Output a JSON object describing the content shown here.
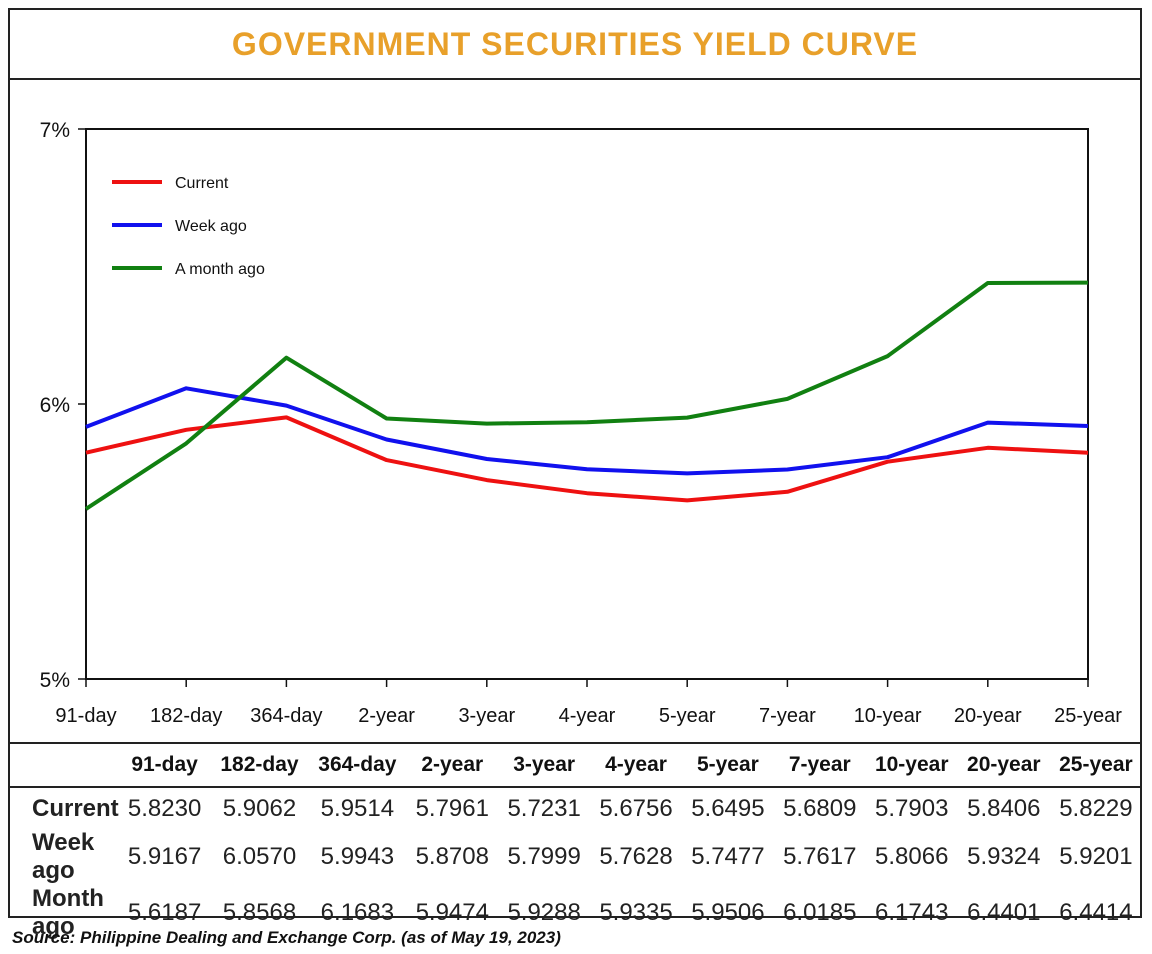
{
  "title": "GOVERNMENT SECURITIES YIELD CURVE",
  "source": "Source: Philippine Dealing and Exchange Corp. (as of May 19, 2023)",
  "colors": {
    "title": "#e8a02a",
    "current": "#ee1111",
    "week_ago": "#1111ee",
    "month_ago": "#118011"
  },
  "chart_data": {
    "type": "line",
    "categories": [
      "91-day",
      "182-day",
      "364-day",
      "2-year",
      "3-year",
      "4-year",
      "5-year",
      "7-year",
      "10-year",
      "20-year",
      "25-year"
    ],
    "y_ticks": [
      "5%",
      "6%",
      "7%"
    ],
    "ylim": [
      5,
      7
    ],
    "grid": false,
    "legend_placement": "top-left",
    "series": [
      {
        "name": "Current",
        "color": "#ee1111",
        "values": [
          5.823,
          5.9062,
          5.9514,
          5.7961,
          5.7231,
          5.6756,
          5.6495,
          5.6809,
          5.7903,
          5.8406,
          5.8229
        ]
      },
      {
        "name": "Week ago",
        "color": "#1111ee",
        "values": [
          5.9167,
          6.057,
          5.9943,
          5.8708,
          5.7999,
          5.7628,
          5.7477,
          5.7617,
          5.8066,
          5.9324,
          5.9201
        ]
      },
      {
        "name": "A month ago",
        "color": "#118011",
        "values": [
          5.6187,
          5.8568,
          6.1683,
          5.9474,
          5.9288,
          5.9335,
          5.9506,
          6.0185,
          6.1743,
          6.4401,
          6.4414
        ]
      }
    ]
  },
  "table": {
    "headers": [
      "91-day",
      "182-day",
      "364-day",
      "2-year",
      "3-year",
      "4-year",
      "5-year",
      "7-year",
      "10-year",
      "20-year",
      "25-year"
    ],
    "rows": [
      {
        "label": "Current",
        "values": [
          "5.8230",
          "5.9062",
          "5.9514",
          "5.7961",
          "5.7231",
          "5.6756",
          "5.6495",
          "5.6809",
          "5.7903",
          "5.8406",
          "5.8229"
        ]
      },
      {
        "label": "Week ago",
        "values": [
          "5.9167",
          "6.0570",
          "5.9943",
          "5.8708",
          "5.7999",
          "5.7628",
          "5.7477",
          "5.7617",
          "5.8066",
          "5.9324",
          "5.9201"
        ]
      },
      {
        "label": "Month ago",
        "values": [
          "5.6187",
          "5.8568",
          "6.1683",
          "5.9474",
          "5.9288",
          "5.9335",
          "5.9506",
          "6.0185",
          "6.1743",
          "6.4401",
          "6.4414"
        ]
      }
    ]
  }
}
